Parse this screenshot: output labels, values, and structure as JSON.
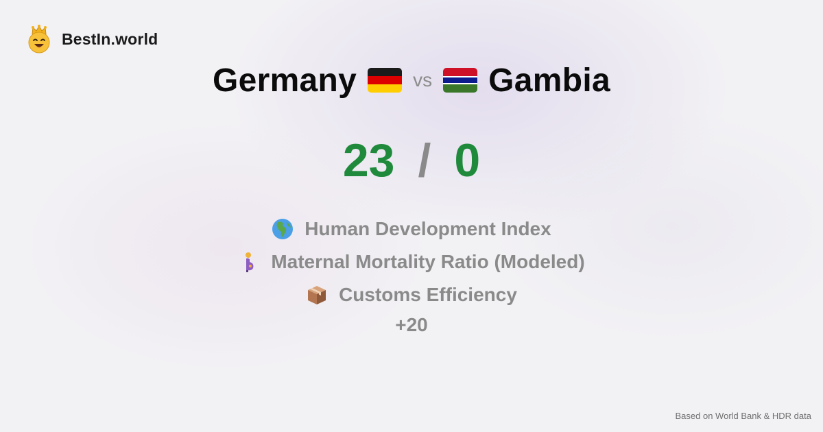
{
  "brand": {
    "name": "BestIn.world",
    "logo_icon": "crowned-smiley-icon"
  },
  "comparison": {
    "left": {
      "name": "Germany",
      "flag_icon": "germany-flag-icon"
    },
    "vs_label": "vs",
    "right": {
      "name": "Gambia",
      "flag_icon": "gambia-flag-icon"
    }
  },
  "score": {
    "left": "23",
    "separator": "/",
    "right": "0",
    "color": "#1f8a3b"
  },
  "metrics": [
    {
      "icon": "globe-africa-icon",
      "label": "Human Development Index"
    },
    {
      "icon": "pregnant-woman-icon",
      "label": "Maternal Mortality Ratio (Modeled)"
    },
    {
      "icon": "package-icon",
      "label": "Customs Efficiency"
    }
  ],
  "more_label": "+20",
  "footer": {
    "source_text": "Based on World Bank & HDR data"
  }
}
